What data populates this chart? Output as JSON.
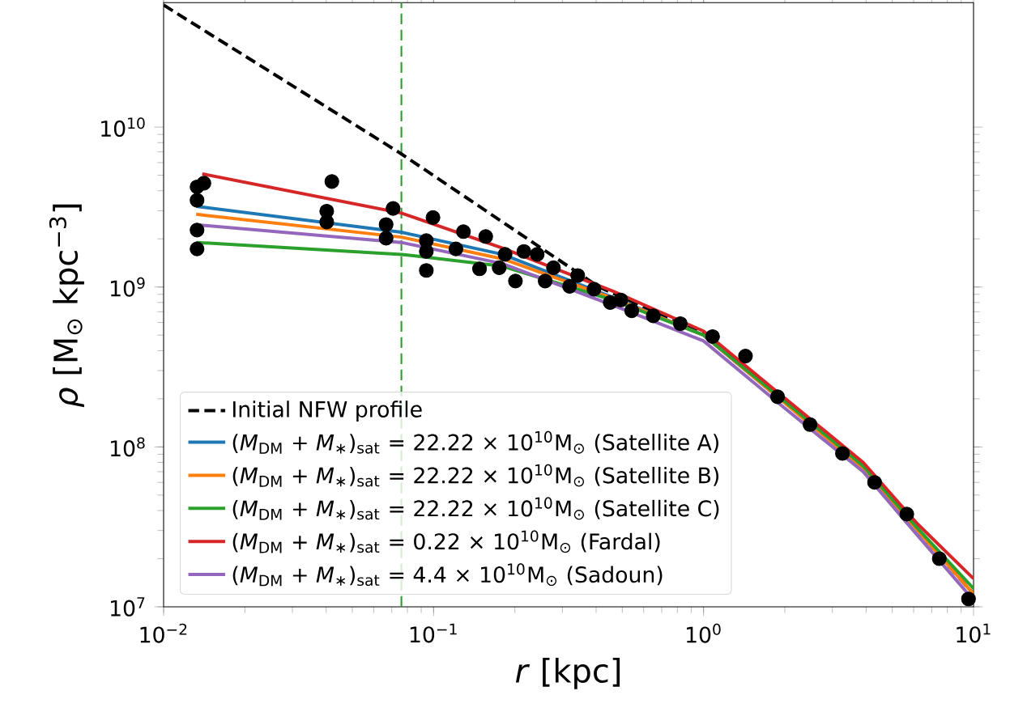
{
  "chart_data": {
    "type": "line",
    "xlabel": "*r* [kpc]",
    "ylabel": "*ρ* [M$_{⊙}$ kpc$^{−3}$]",
    "log": "xy",
    "xlim": [
      0.01,
      10
    ],
    "ylim": [
      10000000.0,
      60000000000.0
    ],
    "xticks": [
      {
        "value": 0.01,
        "label": "10$^{−2}$"
      },
      {
        "value": 0.1,
        "label": "10$^{−1}$"
      },
      {
        "value": 1,
        "label": "10$^{0}$"
      },
      {
        "value": 10,
        "label": "10$^{1}$"
      }
    ],
    "yticks": [
      {
        "value": 10000000.0,
        "label": "10$^{7}$"
      },
      {
        "value": 100000000.0,
        "label": "10$^{8}$"
      },
      {
        "value": 1000000000.0,
        "label": "10$^{9}$"
      },
      {
        "value": 10000000000.0,
        "label": "10$^{10}$"
      }
    ],
    "legend": "bottom left",
    "ref_lines": [
      {
        "axis": "x",
        "value": 0.076,
        "color": "#2ca02c",
        "line_style": "dashed"
      }
    ],
    "series": [
      {
        "type": "scatter",
        "marker": "circle",
        "color": "#000000",
        "x": [
          0.0133,
          0.0133,
          0.0133,
          0.0133,
          0.0141,
          0.042,
          0.0402,
          0.0402,
          0.0667,
          0.0667,
          0.0708,
          0.094,
          0.094,
          0.0995,
          0.094,
          0.121,
          0.129,
          0.148,
          0.156,
          0.175,
          0.184,
          0.201,
          0.216,
          0.242,
          0.259,
          0.278,
          0.319,
          0.342,
          0.393,
          0.451,
          0.494,
          0.542,
          0.651,
          0.82,
          1.08,
          1.43,
          1.88,
          2.48,
          3.27,
          4.3,
          5.66,
          7.47,
          9.58
        ],
        "values": [
          1730000000.0,
          2270000000.0,
          3490000000.0,
          4230000000.0,
          4460000000.0,
          4570000000.0,
          2980000000.0,
          2550000000.0,
          2460000000.0,
          2020000000.0,
          3100000000.0,
          1270000000.0,
          1950000000.0,
          2720000000.0,
          1670000000.0,
          1730000000.0,
          2220000000.0,
          1300000000.0,
          2070000000.0,
          1320000000.0,
          1600000000.0,
          1090000000.0,
          1670000000.0,
          1600000000.0,
          1090000000.0,
          1320000000.0,
          1010000000.0,
          1180000000.0,
          970000000.0,
          800000000.0,
          830000000.0,
          710000000.0,
          660000000.0,
          590000000.0,
          490000000.0,
          370000000.0,
          206000000.0,
          138000000.0,
          91000000.0,
          60000000.0,
          38000000.0,
          20000000.0,
          11200000.0
        ]
      },
      {
        "line_style": "dashed",
        "name": "Initial NFW profile",
        "color": "#000000",
        "x": [
          0.01,
          0.076,
          0.41,
          1.0,
          1.88,
          3.9,
          6.2,
          10
        ],
        "values": [
          58000000000.0,
          6800000000.0,
          1000000000.0,
          510000000.0,
          210000000.0,
          75000000.0,
          30000000.0,
          12000000.0
        ]
      },
      {
        "line_style": "solid",
        "name": "(*M*$_{DM}$ + *M*$_{∗}$)$_{sat}$ = 22.22 × 10$^{10}$M$_{⊙}$ (Satellite A)",
        "color": "#1f77b4",
        "x": [
          0.0132,
          0.076,
          0.18,
          0.47,
          1.0,
          1.88
        ],
        "values": [
          3200000000.0,
          2200000000.0,
          1600000000.0,
          850000000.0,
          500000000.0,
          205000000.0
        ]
      },
      {
        "line_style": "solid",
        "name": "(*M*$_{DM}$ + *M*$_{∗}$)$_{sat}$ = 22.22 × 10$^{10}$M$_{⊙}$ (Satellite B)",
        "color": "#ff7f0e",
        "x": [
          0.0132,
          0.076,
          0.18,
          0.47,
          1.0,
          1.88,
          3.9,
          6.2,
          10
        ],
        "values": [
          2850000000.0,
          2050000000.0,
          1500000000.0,
          840000000.0,
          500000000.0,
          205000000.0,
          73000000.0,
          30000000.0,
          12000000.0
        ]
      },
      {
        "line_style": "solid",
        "name": "(*M*$_{DM}$ + *M*$_{∗}$)$_{sat}$ = 22.22 × 10$^{10}$M$_{⊙}$ (Satellite C)",
        "color": "#2ca02c",
        "x": [
          0.0132,
          0.076,
          0.18,
          0.47,
          1.0,
          1.88,
          3.9,
          6.2,
          10
        ],
        "values": [
          1900000000.0,
          1600000000.0,
          1350000000.0,
          820000000.0,
          500000000.0,
          210000000.0,
          76000000.0,
          31000000.0,
          13000000.0
        ]
      },
      {
        "line_style": "solid",
        "name": "(*M*$_{DM}$ + *M*$_{∗}$)$_{sat}$ = 0.22 × 10$^{10}$M$_{⊙}$ (Fardal)",
        "color": "#d62728",
        "x": [
          0.0139,
          0.076,
          0.18,
          0.47,
          1.0,
          1.88,
          3.9,
          6.2,
          10
        ],
        "values": [
          5100000000.0,
          2900000000.0,
          1750000000.0,
          930000000.0,
          530000000.0,
          220000000.0,
          80000000.0,
          33000000.0,
          15000000.0
        ]
      },
      {
        "line_style": "solid",
        "name": "(*M*$_{DM}$ + *M*$_{∗}$)$_{sat}$ = 4.4 × 10$^{10}$M$_{⊙}$ (Sadoun)",
        "color": "#9467bd",
        "x": [
          0.0132,
          0.076,
          0.18,
          0.47,
          1.0,
          1.88,
          3.9,
          6.2,
          10
        ],
        "values": [
          2450000000.0,
          1900000000.0,
          1400000000.0,
          760000000.0,
          460000000.0,
          190000000.0,
          70000000.0,
          28000000.0,
          11000000.0
        ]
      }
    ]
  }
}
